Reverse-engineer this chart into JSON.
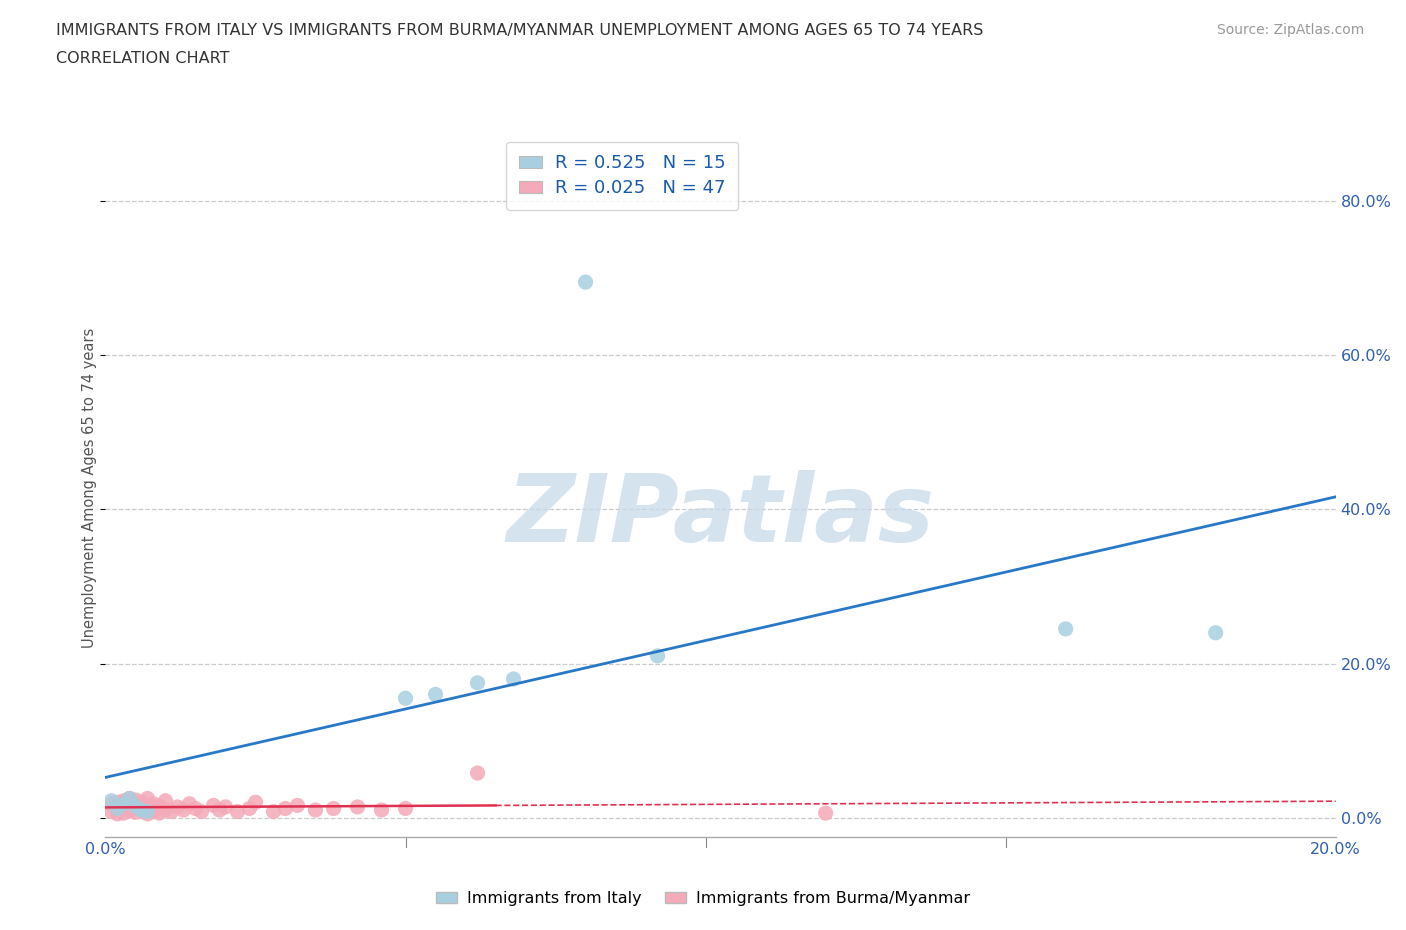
{
  "title_line1": "IMMIGRANTS FROM ITALY VS IMMIGRANTS FROM BURMA/MYANMAR UNEMPLOYMENT AMONG AGES 65 TO 74 YEARS",
  "title_line2": "CORRELATION CHART",
  "source": "Source: ZipAtlas.com",
  "ylabel": "Unemployment Among Ages 65 to 74 years",
  "xlabel_italy": "Immigrants from Italy",
  "xlabel_burma": "Immigrants from Burma/Myanmar",
  "r_italy": 0.525,
  "n_italy": 15,
  "r_burma": 0.025,
  "n_burma": 47,
  "color_italy": "#a8cfe0",
  "color_burma": "#f4aab8",
  "trendline_italy": "#2878c8",
  "trendline_burma": "#e03050",
  "xlim": [
    0.0,
    0.205
  ],
  "ylim": [
    -0.025,
    0.88
  ],
  "ytick_vals": [
    0.0,
    0.2,
    0.4,
    0.6,
    0.8
  ],
  "xtick_labels_left": "0.0%",
  "xtick_labels_right": "20.0%",
  "watermark_text": "ZIPatlas",
  "background_color": "#ffffff",
  "grid_color": "#cccccc",
  "italy_x": [
    0.001,
    0.002,
    0.003,
    0.004,
    0.005,
    0.006,
    0.007,
    0.05,
    0.062,
    0.08,
    0.092,
    0.16,
    0.185,
    0.068,
    0.055
  ],
  "italy_y": [
    0.022,
    0.012,
    0.018,
    0.025,
    0.015,
    0.01,
    0.008,
    0.155,
    0.175,
    0.695,
    0.21,
    0.245,
    0.24,
    0.18,
    0.16
  ],
  "burma_x": [
    0.001,
    0.001,
    0.002,
    0.002,
    0.002,
    0.003,
    0.003,
    0.003,
    0.004,
    0.004,
    0.004,
    0.005,
    0.005,
    0.005,
    0.006,
    0.006,
    0.007,
    0.007,
    0.007,
    0.008,
    0.008,
    0.009,
    0.009,
    0.01,
    0.01,
    0.011,
    0.012,
    0.013,
    0.014,
    0.015,
    0.016,
    0.018,
    0.019,
    0.02,
    0.022,
    0.024,
    0.025,
    0.028,
    0.03,
    0.032,
    0.035,
    0.038,
    0.042,
    0.046,
    0.05,
    0.062,
    0.12
  ],
  "burma_y": [
    0.008,
    0.018,
    0.005,
    0.012,
    0.02,
    0.006,
    0.014,
    0.022,
    0.009,
    0.018,
    0.025,
    0.007,
    0.015,
    0.023,
    0.01,
    0.02,
    0.005,
    0.013,
    0.025,
    0.008,
    0.018,
    0.006,
    0.015,
    0.01,
    0.022,
    0.008,
    0.014,
    0.01,
    0.018,
    0.012,
    0.008,
    0.016,
    0.01,
    0.014,
    0.008,
    0.012,
    0.02,
    0.008,
    0.012,
    0.016,
    0.01,
    0.012,
    0.014,
    0.01,
    0.012,
    0.058,
    0.006
  ],
  "burma_trendline_x_solid_end": 0.065
}
